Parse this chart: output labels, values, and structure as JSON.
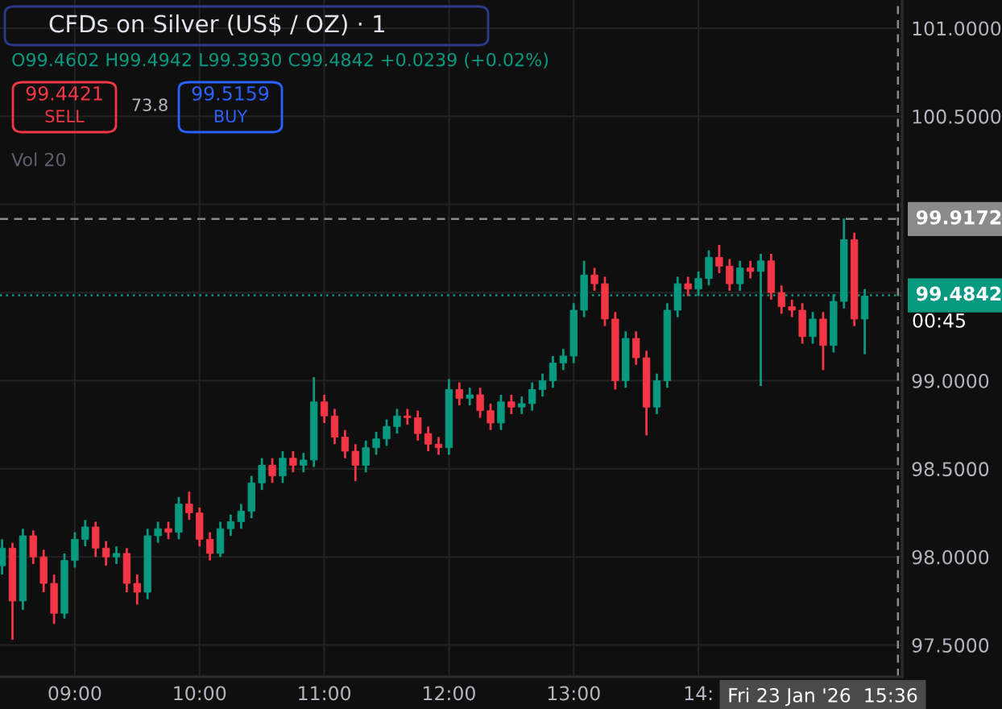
{
  "chart_data": {
    "type": "candlestick",
    "x": [
      "2026-01-23T08:25",
      "2026-01-23T08:30",
      "2026-01-23T08:35",
      "2026-01-23T08:40",
      "2026-01-23T08:45",
      "2026-01-23T08:50",
      "2026-01-23T08:55",
      "2026-01-23T09:00",
      "2026-01-23T09:05",
      "2026-01-23T09:10",
      "2026-01-23T09:15",
      "2026-01-23T09:20",
      "2026-01-23T09:25",
      "2026-01-23T09:30",
      "2026-01-23T09:35",
      "2026-01-23T09:40",
      "2026-01-23T09:45",
      "2026-01-23T09:50",
      "2026-01-23T09:55",
      "2026-01-23T10:00",
      "2026-01-23T10:05",
      "2026-01-23T10:10",
      "2026-01-23T10:15",
      "2026-01-23T10:20",
      "2026-01-23T10:25",
      "2026-01-23T10:30",
      "2026-01-23T10:35",
      "2026-01-23T10:40",
      "2026-01-23T10:45",
      "2026-01-23T10:50",
      "2026-01-23T10:55",
      "2026-01-23T11:00",
      "2026-01-23T11:05",
      "2026-01-23T11:10",
      "2026-01-23T11:15",
      "2026-01-23T11:20",
      "2026-01-23T11:25",
      "2026-01-23T11:30",
      "2026-01-23T11:35",
      "2026-01-23T11:40",
      "2026-01-23T11:45",
      "2026-01-23T11:50",
      "2026-01-23T11:55",
      "2026-01-23T12:00",
      "2026-01-23T12:05",
      "2026-01-23T12:10",
      "2026-01-23T12:15",
      "2026-01-23T12:20",
      "2026-01-23T12:25",
      "2026-01-23T12:30",
      "2026-01-23T12:35",
      "2026-01-23T12:40",
      "2026-01-23T12:45",
      "2026-01-23T12:50",
      "2026-01-23T12:55",
      "2026-01-23T13:00",
      "2026-01-23T13:05",
      "2026-01-23T13:10",
      "2026-01-23T13:15",
      "2026-01-23T13:20",
      "2026-01-23T13:25",
      "2026-01-23T13:30",
      "2026-01-23T13:35",
      "2026-01-23T13:40",
      "2026-01-23T13:45",
      "2026-01-23T13:50",
      "2026-01-23T13:55",
      "2026-01-23T14:00",
      "2026-01-23T14:05",
      "2026-01-23T14:10",
      "2026-01-23T14:15",
      "2026-01-23T14:20",
      "2026-01-23T14:25",
      "2026-01-23T14:30",
      "2026-01-23T14:35",
      "2026-01-23T14:40",
      "2026-01-23T14:45",
      "2026-01-23T14:50",
      "2026-01-23T14:55",
      "2026-01-23T15:00",
      "2026-01-23T15:05",
      "2026-01-23T15:10",
      "2026-01-23T15:15",
      "2026-01-23T15:20"
    ],
    "ohlc": [
      [
        97.95,
        98.1,
        97.9,
        98.05
      ],
      [
        98.05,
        98.08,
        97.53,
        97.75
      ],
      [
        97.75,
        98.16,
        97.7,
        98.12
      ],
      [
        98.12,
        98.15,
        97.96,
        98.0
      ],
      [
        98.0,
        98.04,
        97.8,
        97.85
      ],
      [
        97.85,
        97.9,
        97.62,
        97.68
      ],
      [
        97.68,
        98.02,
        97.65,
        97.98
      ],
      [
        97.98,
        98.14,
        97.94,
        98.1
      ],
      [
        98.1,
        98.21,
        98.06,
        98.17
      ],
      [
        98.17,
        98.2,
        98.0,
        98.05
      ],
      [
        98.05,
        98.09,
        97.95,
        98.0
      ],
      [
        98.0,
        98.06,
        97.96,
        98.02
      ],
      [
        98.02,
        98.05,
        97.8,
        97.85
      ],
      [
        97.85,
        97.9,
        97.73,
        97.8
      ],
      [
        97.8,
        98.16,
        97.76,
        98.12
      ],
      [
        98.12,
        98.2,
        98.08,
        98.16
      ],
      [
        98.16,
        98.2,
        98.1,
        98.14
      ],
      [
        98.14,
        98.34,
        98.1,
        98.3
      ],
      [
        98.3,
        98.37,
        98.21,
        98.25
      ],
      [
        98.25,
        98.28,
        98.06,
        98.1
      ],
      [
        98.1,
        98.14,
        97.98,
        98.02
      ],
      [
        98.02,
        98.2,
        98.0,
        98.16
      ],
      [
        98.16,
        98.24,
        98.12,
        98.2
      ],
      [
        98.2,
        98.3,
        98.16,
        98.26
      ],
      [
        98.26,
        98.46,
        98.22,
        98.42
      ],
      [
        98.42,
        98.56,
        98.38,
        98.52
      ],
      [
        98.52,
        98.56,
        98.42,
        98.46
      ],
      [
        98.46,
        98.6,
        98.42,
        98.56
      ],
      [
        98.56,
        98.6,
        98.48,
        98.52
      ],
      [
        98.52,
        98.59,
        98.48,
        98.55
      ],
      [
        98.55,
        99.02,
        98.51,
        98.88
      ],
      [
        98.88,
        98.92,
        98.76,
        98.8
      ],
      [
        98.8,
        98.84,
        98.64,
        98.68
      ],
      [
        98.68,
        98.72,
        98.56,
        98.6
      ],
      [
        98.6,
        98.64,
        98.43,
        98.52
      ],
      [
        98.52,
        98.66,
        98.48,
        98.62
      ],
      [
        98.62,
        98.71,
        98.58,
        98.67
      ],
      [
        98.67,
        98.78,
        98.63,
        98.74
      ],
      [
        98.74,
        98.84,
        98.7,
        98.8
      ],
      [
        98.8,
        98.84,
        98.75,
        98.79
      ],
      [
        98.79,
        98.83,
        98.66,
        98.7
      ],
      [
        98.7,
        98.74,
        98.6,
        98.64
      ],
      [
        98.64,
        98.68,
        98.58,
        98.62
      ],
      [
        98.62,
        99.01,
        98.58,
        98.95
      ],
      [
        98.95,
        98.99,
        98.86,
        98.9
      ],
      [
        98.9,
        98.96,
        98.86,
        98.92
      ],
      [
        98.92,
        98.96,
        98.79,
        98.83
      ],
      [
        98.83,
        98.87,
        98.72,
        98.76
      ],
      [
        98.76,
        98.92,
        98.72,
        98.88
      ],
      [
        98.88,
        98.92,
        98.81,
        98.85
      ],
      [
        98.85,
        98.91,
        98.81,
        98.87
      ],
      [
        98.87,
        98.99,
        98.83,
        98.95
      ],
      [
        98.95,
        99.04,
        98.91,
        99.0
      ],
      [
        99.0,
        99.14,
        98.96,
        99.1
      ],
      [
        99.1,
        99.18,
        99.06,
        99.14
      ],
      [
        99.14,
        99.44,
        99.1,
        99.4
      ],
      [
        99.4,
        99.68,
        99.36,
        99.6
      ],
      [
        99.6,
        99.64,
        99.51,
        99.55
      ],
      [
        99.55,
        99.59,
        99.31,
        99.35
      ],
      [
        99.35,
        99.39,
        98.95,
        99.0
      ],
      [
        99.0,
        99.28,
        98.96,
        99.24
      ],
      [
        99.24,
        99.28,
        99.09,
        99.13
      ],
      [
        99.13,
        99.17,
        98.69,
        98.85
      ],
      [
        98.85,
        99.04,
        98.81,
        99.0
      ],
      [
        99.0,
        99.44,
        98.96,
        99.4
      ],
      [
        99.4,
        99.59,
        99.36,
        99.55
      ],
      [
        99.55,
        99.59,
        99.48,
        99.52
      ],
      [
        99.52,
        99.62,
        99.48,
        99.58
      ],
      [
        99.58,
        99.74,
        99.54,
        99.7
      ],
      [
        99.7,
        99.77,
        99.61,
        99.65
      ],
      [
        99.65,
        99.69,
        99.51,
        99.55
      ],
      [
        99.55,
        99.68,
        99.51,
        99.64
      ],
      [
        99.64,
        99.68,
        99.58,
        99.62
      ],
      [
        99.62,
        99.72,
        98.97,
        99.68
      ],
      [
        99.68,
        99.72,
        99.46,
        99.5
      ],
      [
        99.5,
        99.54,
        99.38,
        99.42
      ],
      [
        99.42,
        99.46,
        99.36,
        99.4
      ],
      [
        99.4,
        99.44,
        99.21,
        99.25
      ],
      [
        99.25,
        99.39,
        99.21,
        99.35
      ],
      [
        99.35,
        99.39,
        99.06,
        99.2
      ],
      [
        99.2,
        99.49,
        99.16,
        99.45
      ],
      [
        99.45,
        99.92,
        99.41,
        99.8
      ],
      [
        99.8,
        99.84,
        99.31,
        99.35
      ],
      [
        99.35,
        99.52,
        99.15,
        99.48
      ]
    ],
    "xlim": [
      "2026-01-23T08:24",
      "2026-01-23T15:38"
    ],
    "xticks": [
      {
        "value": "2026-01-23T09:00",
        "label": "09:00"
      },
      {
        "value": "2026-01-23T10:00",
        "label": "10:00"
      },
      {
        "value": "2026-01-23T11:00",
        "label": "11:00"
      },
      {
        "value": "2026-01-23T12:00",
        "label": "12:00"
      },
      {
        "value": "2026-01-23T13:00",
        "label": "13:00"
      },
      {
        "value": "2026-01-23T14:00",
        "label": "14:"
      }
    ],
    "ylim": [
      97.32,
      101.16
    ],
    "yticks": [
      {
        "value": 97.5,
        "label": "97.5000"
      },
      {
        "value": 98.0,
        "label": "98.0000"
      },
      {
        "value": 98.5,
        "label": "98.5000"
      },
      {
        "value": 99.0,
        "label": "99.0000"
      },
      {
        "value": 99.5,
        "label": null
      },
      {
        "value": 100.0,
        "label": null
      },
      {
        "value": 100.5,
        "label": "100.5000"
      },
      {
        "value": 101.0,
        "label": "101.0000"
      }
    ],
    "grid": true,
    "ref_lines": [
      {
        "axis": "y",
        "value": 99.9172,
        "label": "99.9172",
        "color": "#8a8a8a",
        "line_style": "dashed"
      },
      {
        "axis": "y",
        "value": 99.4842,
        "label": "99.4842",
        "color": "#089981",
        "line_style": "dotted"
      },
      {
        "axis": "x",
        "value": "2026-01-23T15:36",
        "label": "Fri 23 Jan '26  15:36",
        "color": "#8a8a8a",
        "line_style": "dashed"
      }
    ],
    "annotations": [
      "CFDs on Silver (US$ / OZ) · 1",
      "O99.4602 H99.4942 L99.3930 C99.4842 +0.0239 (+0.02%)",
      "99.4421",
      "SELL",
      "73.8",
      "99.5159",
      "BUY",
      "Vol 20",
      "00:45"
    ]
  }
}
